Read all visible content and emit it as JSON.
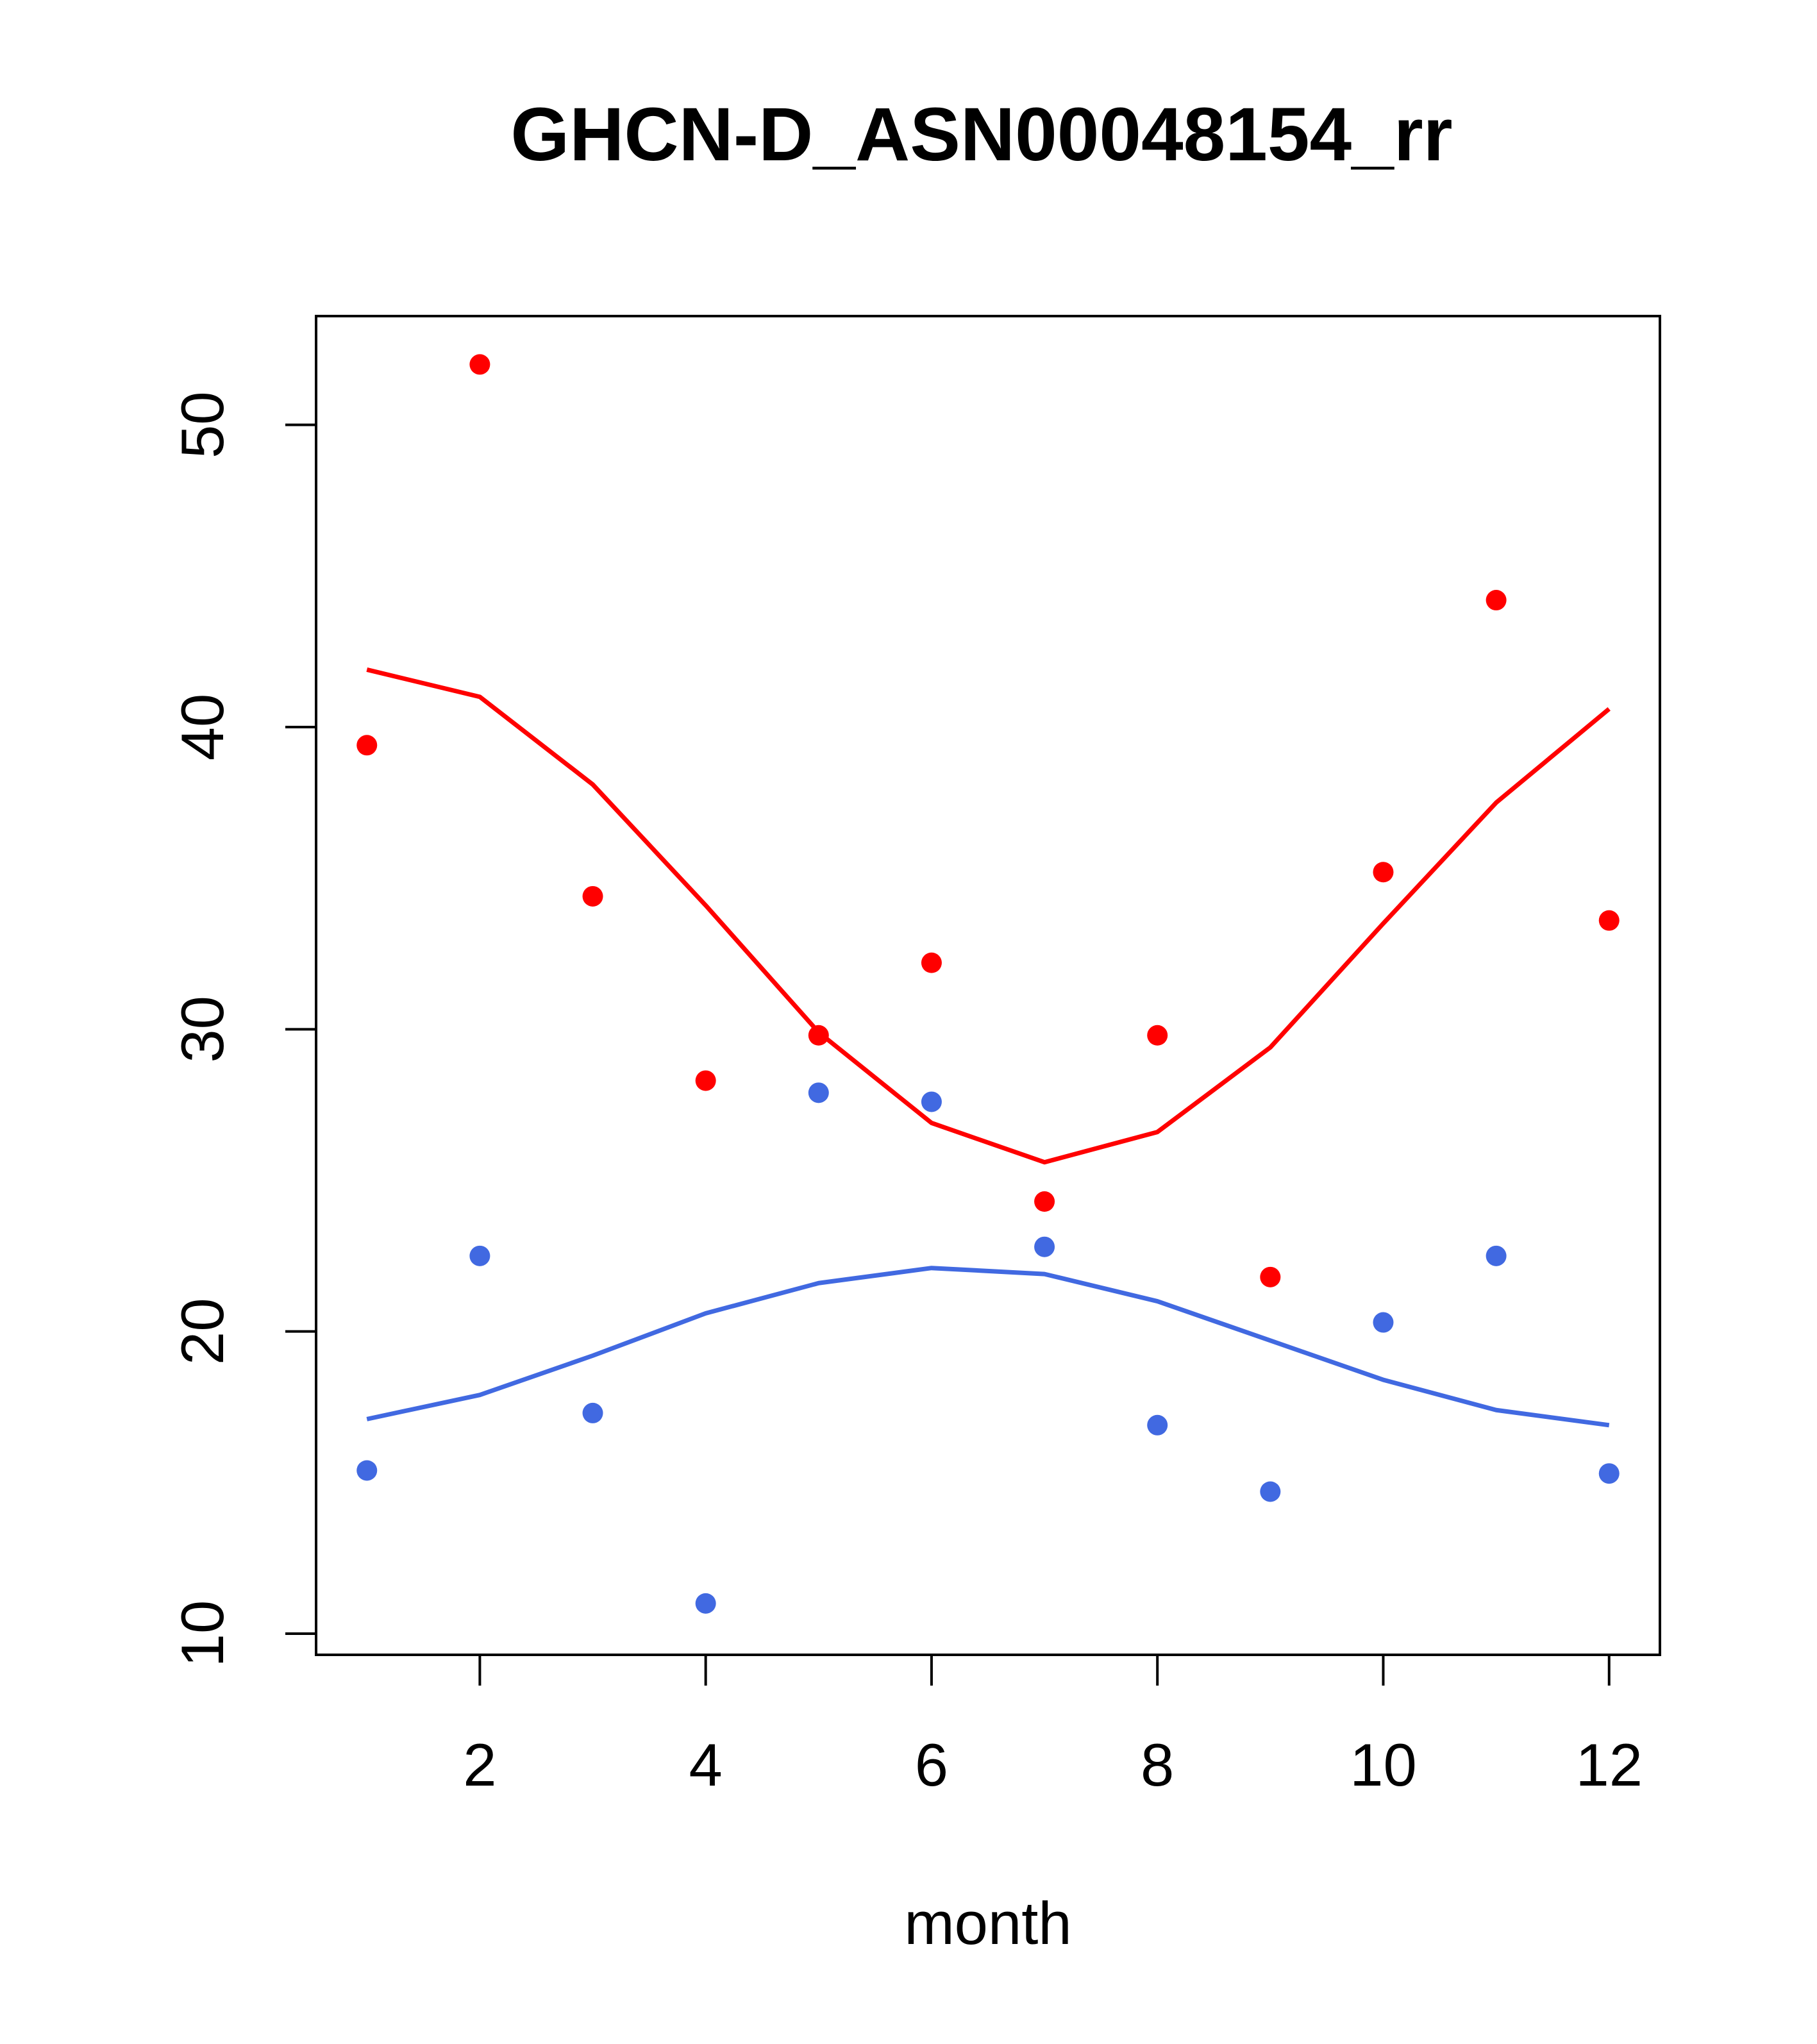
{
  "chart_data": {
    "type": "scatter",
    "title": "GHCN-D_ASN00048154_rr",
    "xlabel": "month",
    "ylabel": "",
    "xlim": [
      0.55,
      12.45
    ],
    "ylim": [
      9.3,
      53.6
    ],
    "x_ticks": [
      2,
      4,
      6,
      8,
      10,
      12
    ],
    "y_ticks": [
      10,
      20,
      30,
      40,
      50
    ],
    "grid": false,
    "legend": "none",
    "series": [
      {
        "color": "#ff0000",
        "kind": "points",
        "x": [
          1,
          2,
          3,
          4,
          5,
          6,
          7,
          8,
          9,
          10,
          11,
          12
        ],
        "y": [
          39.4,
          52.0,
          34.4,
          28.3,
          29.8,
          32.2,
          24.3,
          29.8,
          21.8,
          35.2,
          44.2,
          33.6
        ]
      },
      {
        "color": "#ff0000",
        "kind": "line",
        "x": [
          1,
          2,
          3,
          4,
          5,
          6,
          7,
          8,
          9,
          10,
          11,
          12
        ],
        "y": [
          41.9,
          41.0,
          38.1,
          34.1,
          29.9,
          26.9,
          25.6,
          26.6,
          29.4,
          33.5,
          37.5,
          40.6
        ]
      },
      {
        "color": "#4169e1",
        "kind": "points",
        "x": [
          1,
          2,
          3,
          4,
          5,
          6,
          7,
          8,
          9,
          10,
          11,
          12
        ],
        "y": [
          15.4,
          22.5,
          17.3,
          11.0,
          27.9,
          27.6,
          22.8,
          16.9,
          14.7,
          20.3,
          22.5,
          15.3
        ]
      },
      {
        "color": "#4169e1",
        "kind": "line",
        "x": [
          1,
          2,
          3,
          4,
          5,
          6,
          7,
          8,
          9,
          10,
          11,
          12
        ],
        "y": [
          17.1,
          17.9,
          19.2,
          20.6,
          21.6,
          22.1,
          21.9,
          21.0,
          19.7,
          18.4,
          17.4,
          16.9
        ]
      }
    ]
  }
}
